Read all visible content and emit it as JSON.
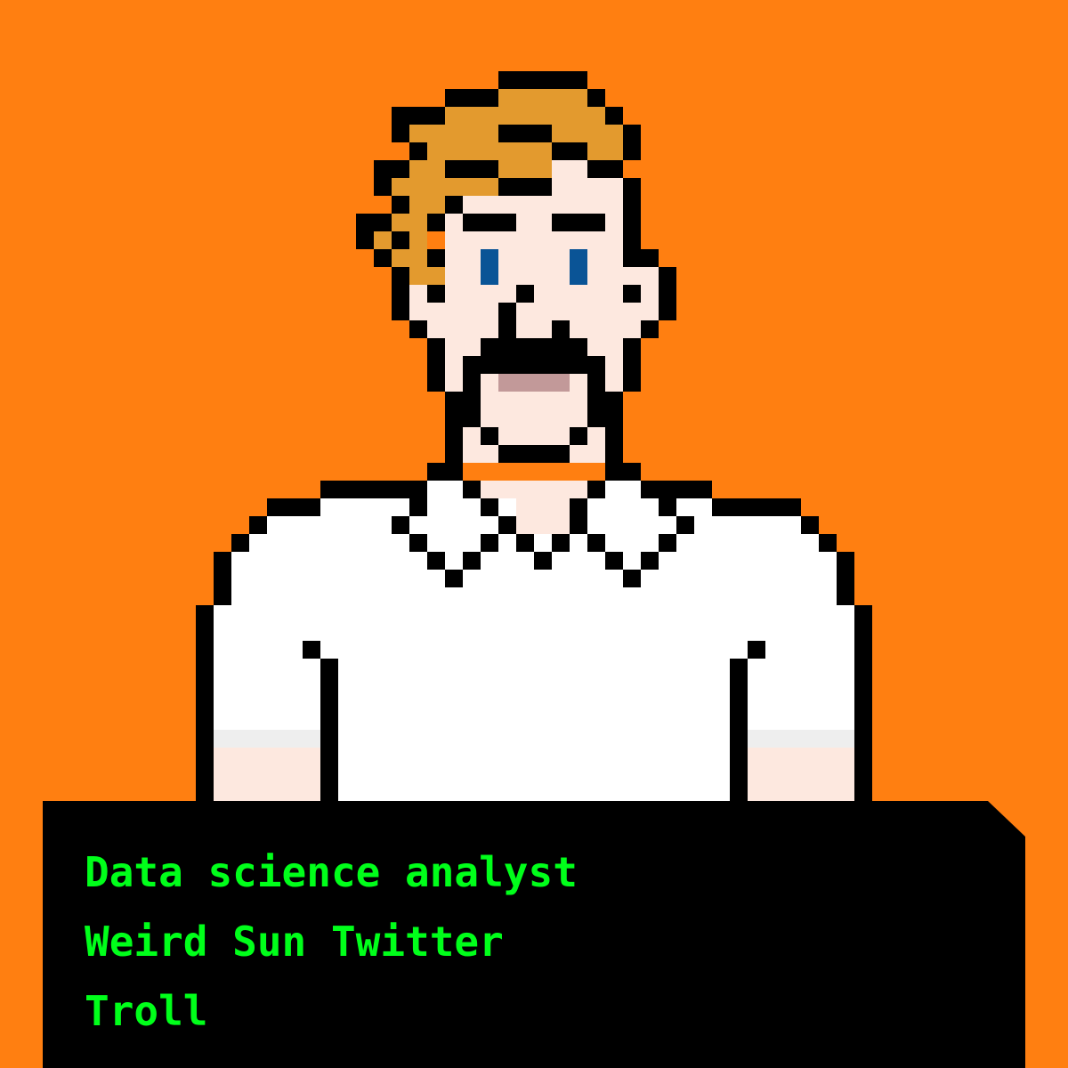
{
  "background_color": "#FF7F11",
  "palette": {
    "outline": "#000000",
    "hair": "#E39A2E",
    "skin": "#FDE8DF",
    "eyes": "#0A5496",
    "mouth": "#C29999",
    "shirt": "#FFFFFF",
    "cuff": "#EEEEEE"
  },
  "avatar": {
    "image": "pixel-art-man-portrait"
  },
  "caption": {
    "text_color": "#00FF1A",
    "lines": [
      "Data science analyst",
      "Weird Sun Twitter",
      "Troll"
    ]
  }
}
